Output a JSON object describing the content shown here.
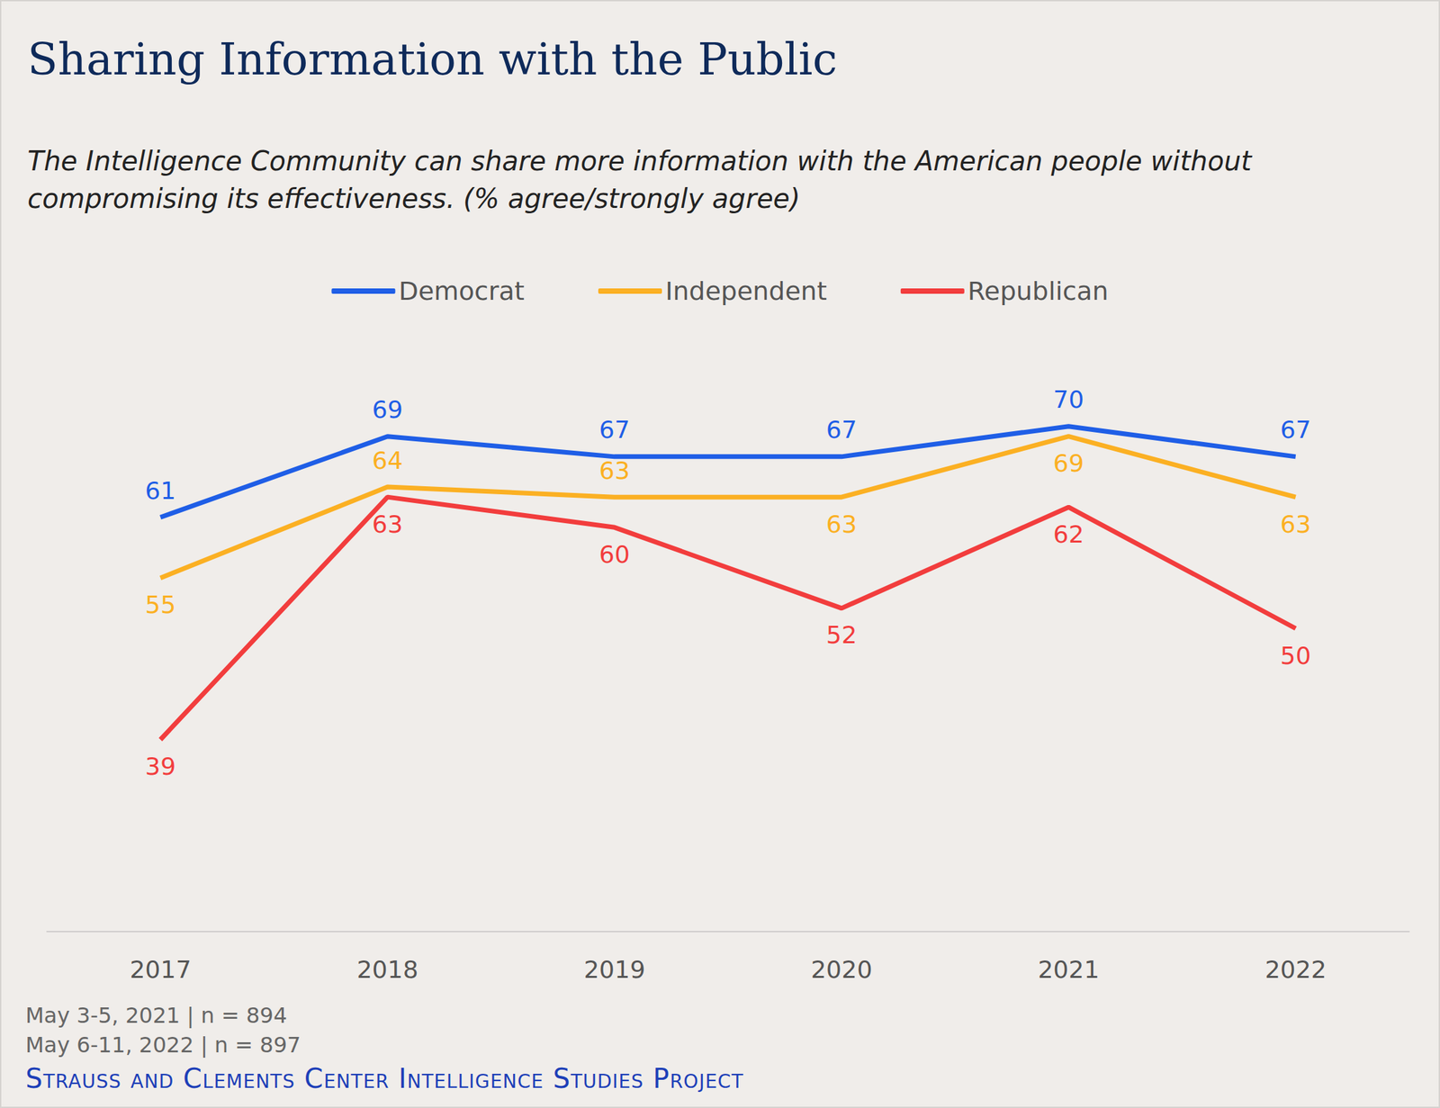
{
  "chart_data": {
    "type": "line",
    "title": "Sharing Information with the Public",
    "subtitle": "The Intelligence Community can share more information with the American people without compromising its effectiveness. (% agree/strongly agree)",
    "notes": [
      "May 3-5, 2021 | n = 894",
      "May 6-11, 2022 | n = 897"
    ],
    "source": "Strauss and Clements Center Intelligence Studies Project",
    "categories": [
      "2017",
      "2018",
      "2019",
      "2020",
      "2021",
      "2022"
    ],
    "series": [
      {
        "name": "Democrat",
        "color": "#1f5ee6",
        "values": [
          61,
          69,
          67,
          67,
          70,
          67
        ]
      },
      {
        "name": "Independent",
        "color": "#fbb023",
        "values": [
          55,
          64,
          63,
          63,
          69,
          63
        ]
      },
      {
        "name": "Republican",
        "color": "#f23d3d",
        "values": [
          39,
          63,
          60,
          52,
          62,
          50
        ]
      }
    ],
    "ylim": [
      20,
      80
    ],
    "yticks": [
      20,
      50,
      80
    ],
    "grid": false,
    "legend": "top",
    "data_labels": true,
    "tick_labels": "x"
  }
}
